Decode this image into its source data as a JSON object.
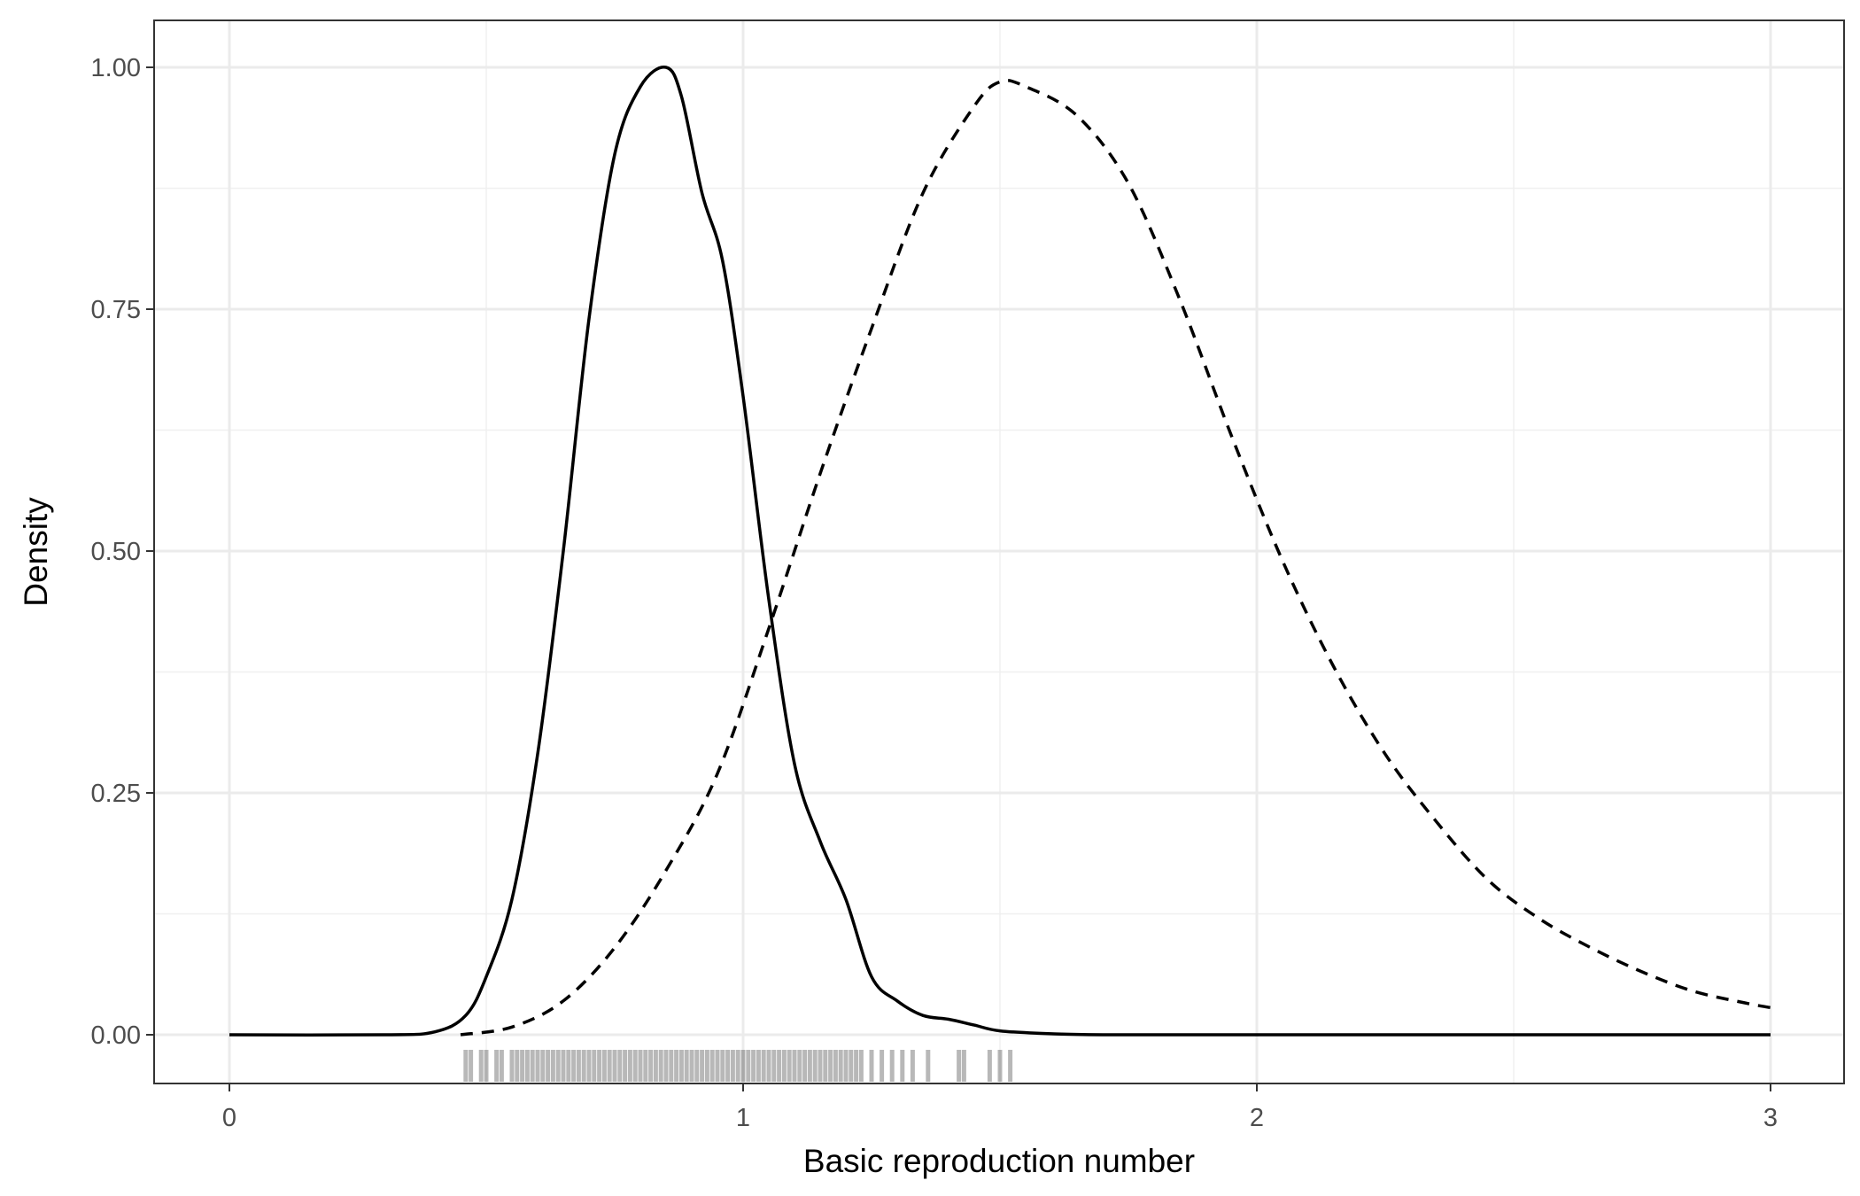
{
  "chart_data": {
    "type": "line",
    "title": "",
    "xlabel": "Basic reproduction number",
    "ylabel": "Density",
    "xlim": [
      -0.15,
      3.05
    ],
    "ylim": [
      -0.05,
      1.05
    ],
    "x_ticks": [
      0,
      1,
      2,
      3
    ],
    "x_tick_labels": [
      "0",
      "1",
      "2",
      "3"
    ],
    "y_ticks": [
      0,
      0.25,
      0.5,
      0.75,
      1
    ],
    "y_tick_labels": [
      "0.00",
      "0.25",
      "0.50",
      "0.75",
      "1.00"
    ],
    "grid": true,
    "theme": "black-and-white panel with light grey major and minor gridlines",
    "series": [
      {
        "style": "solid",
        "color": "#000000",
        "points": [
          [
            0.0,
            0.0
          ],
          [
            0.3,
            0.0
          ],
          [
            0.4,
            0.003
          ],
          [
            0.46,
            0.02
          ],
          [
            0.5,
            0.06
          ],
          [
            0.55,
            0.14
          ],
          [
            0.6,
            0.29
          ],
          [
            0.65,
            0.5
          ],
          [
            0.7,
            0.74
          ],
          [
            0.75,
            0.91
          ],
          [
            0.8,
            0.98
          ],
          [
            0.85,
            1.0
          ],
          [
            0.88,
            0.97
          ],
          [
            0.92,
            0.87
          ],
          [
            0.96,
            0.8
          ],
          [
            1.0,
            0.66
          ],
          [
            1.05,
            0.45
          ],
          [
            1.1,
            0.28
          ],
          [
            1.15,
            0.2
          ],
          [
            1.2,
            0.14
          ],
          [
            1.25,
            0.06
          ],
          [
            1.3,
            0.035
          ],
          [
            1.35,
            0.02
          ],
          [
            1.4,
            0.016
          ],
          [
            1.45,
            0.01
          ],
          [
            1.5,
            0.004
          ],
          [
            1.6,
            0.001
          ],
          [
            1.7,
            0.0
          ],
          [
            2.0,
            0.0
          ],
          [
            2.5,
            0.0
          ],
          [
            3.0,
            0.0
          ]
        ]
      },
      {
        "style": "dashed",
        "color": "#000000",
        "points": [
          [
            0.45,
            0.0
          ],
          [
            0.55,
            0.008
          ],
          [
            0.65,
            0.035
          ],
          [
            0.75,
            0.09
          ],
          [
            0.85,
            0.17
          ],
          [
            0.95,
            0.27
          ],
          [
            1.05,
            0.42
          ],
          [
            1.15,
            0.58
          ],
          [
            1.25,
            0.73
          ],
          [
            1.35,
            0.87
          ],
          [
            1.45,
            0.96
          ],
          [
            1.5,
            0.985
          ],
          [
            1.55,
            0.98
          ],
          [
            1.65,
            0.95
          ],
          [
            1.75,
            0.88
          ],
          [
            1.85,
            0.76
          ],
          [
            1.95,
            0.62
          ],
          [
            2.05,
            0.49
          ],
          [
            2.15,
            0.38
          ],
          [
            2.25,
            0.29
          ],
          [
            2.35,
            0.22
          ],
          [
            2.45,
            0.16
          ],
          [
            2.55,
            0.12
          ],
          [
            2.65,
            0.09
          ],
          [
            2.75,
            0.065
          ],
          [
            2.85,
            0.045
          ],
          [
            2.95,
            0.033
          ],
          [
            3.0,
            0.028
          ]
        ]
      }
    ],
    "rug": {
      "axis": "x",
      "color": "#000000",
      "values": [
        0.46,
        0.47,
        0.49,
        0.5,
        0.52,
        0.53,
        0.55,
        0.56,
        0.57,
        0.58,
        0.59,
        0.6,
        0.61,
        0.62,
        0.63,
        0.64,
        0.65,
        0.66,
        0.67,
        0.68,
        0.69,
        0.7,
        0.71,
        0.72,
        0.73,
        0.74,
        0.75,
        0.76,
        0.77,
        0.78,
        0.79,
        0.8,
        0.81,
        0.82,
        0.83,
        0.84,
        0.85,
        0.86,
        0.87,
        0.88,
        0.89,
        0.9,
        0.91,
        0.92,
        0.93,
        0.94,
        0.95,
        0.96,
        0.97,
        0.98,
        0.99,
        1.0,
        1.01,
        1.02,
        1.03,
        1.04,
        1.05,
        1.06,
        1.07,
        1.08,
        1.09,
        1.1,
        1.11,
        1.12,
        1.13,
        1.14,
        1.15,
        1.16,
        1.17,
        1.18,
        1.19,
        1.2,
        1.21,
        1.22,
        1.23,
        1.25,
        1.27,
        1.29,
        1.31,
        1.33,
        1.36,
        1.42,
        1.43,
        1.48,
        1.5,
        1.52
      ]
    }
  }
}
